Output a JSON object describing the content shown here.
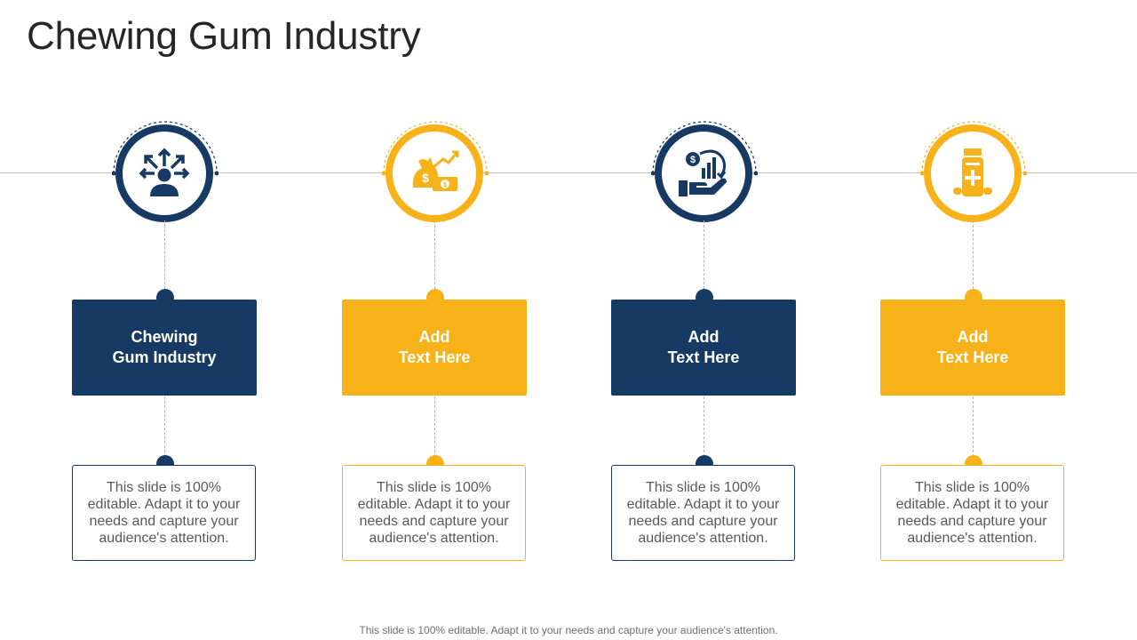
{
  "title": "Chewing Gum Industry",
  "colors": {
    "navy": "#163a63",
    "gold": "#f7b21a"
  },
  "steps": [
    {
      "icon": "person-arrows-icon",
      "color": "navy",
      "heading": "Chewing\nGum Industry",
      "text": "This slide is 100% editable. Adapt it to your needs and capture your audience's attention."
    },
    {
      "icon": "money-growth-icon",
      "color": "gold",
      "heading": "Add\nText Here",
      "text": "This slide is 100% editable. Adapt it to your needs and capture your audience's attention."
    },
    {
      "icon": "hand-investment-icon",
      "color": "navy",
      "heading": "Add\nText Here",
      "text": "This slide is 100% editable. Adapt it to your needs and capture your audience's attention."
    },
    {
      "icon": "medicine-bottle-icon",
      "color": "gold",
      "heading": "Add\nText Here",
      "text": "This slide is 100% editable. Adapt it to your needs and capture your audience's attention."
    }
  ],
  "footer": "This slide is 100% editable. Adapt it to your needs and capture your audience's attention."
}
